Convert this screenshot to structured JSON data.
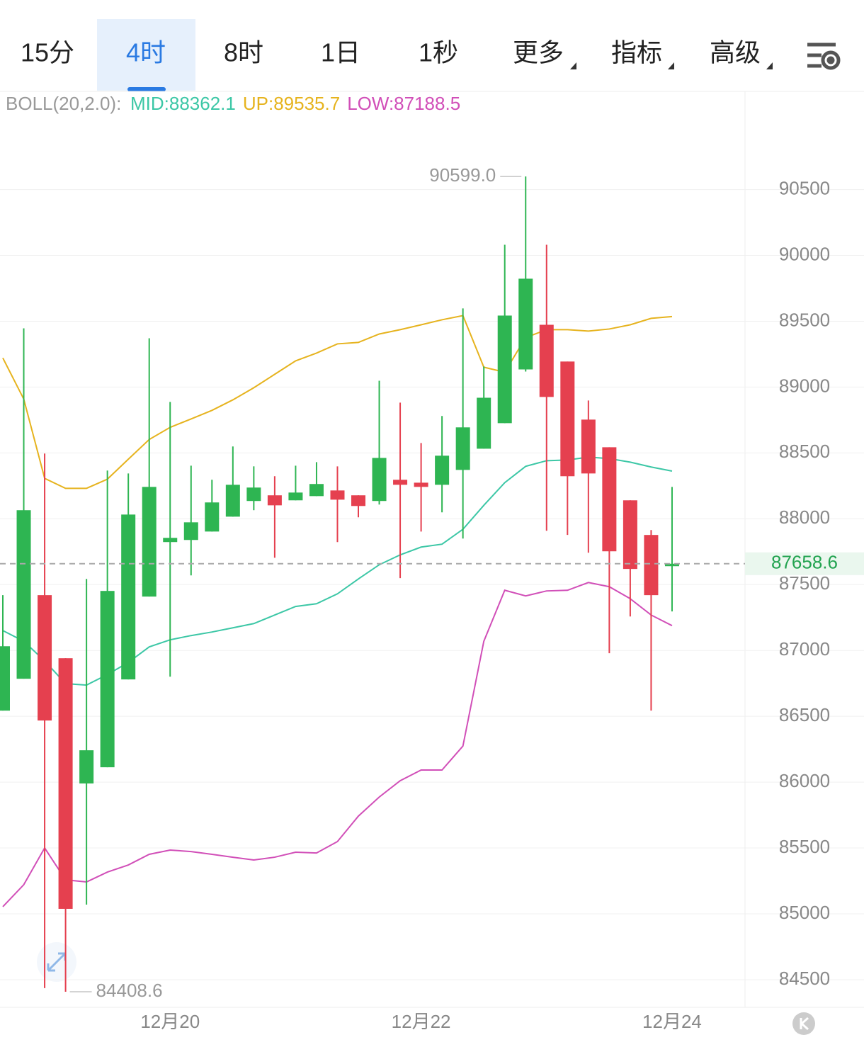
{
  "tabs": [
    "15分",
    "4时",
    "8时",
    "1日",
    "1秒",
    "更多",
    "指标",
    "高级"
  ],
  "active_tab": 1,
  "chart_data": {
    "type": "candlestick",
    "legend": {
      "title": "BOLL(20,2.0):",
      "items": [
        "MID:88362.1",
        "UP:89535.7",
        "LOW:87188.5"
      ]
    },
    "x": [
      null,
      null,
      null,
      null,
      null,
      null,
      null,
      null,
      "12月20",
      null,
      null,
      null,
      null,
      null,
      null,
      null,
      null,
      null,
      null,
      null,
      "12月22",
      null,
      null,
      null,
      null,
      null,
      null,
      null,
      null,
      null,
      null,
      null,
      "12月24"
    ],
    "candles": {
      "up_color": "#2eb552",
      "down_color": "#e5404f",
      "open": [
        86543,
        86785,
        87420,
        86941,
        85990,
        86113,
        86780,
        87409,
        87823,
        87839,
        87903,
        88016,
        88135,
        88178,
        88140,
        88172,
        88215,
        88178,
        88135,
        88296,
        88274,
        88258,
        88371,
        88532,
        88726,
        89134,
        89473,
        89194,
        88753,
        88543,
        88140,
        87877,
        87640
      ],
      "high": [
        87420,
        89446,
        88495,
        86941,
        87543,
        88366,
        88344,
        89371,
        88887,
        88403,
        88296,
        88549,
        88398,
        88323,
        88403,
        88430,
        88398,
        88178,
        89048,
        88882,
        88575,
        88780,
        89597,
        89156,
        90081,
        90599,
        90081,
        89194,
        88898,
        88543,
        88140,
        87914,
        88242
      ],
      "low": [
        86543,
        86785,
        84436,
        84408.6,
        85070,
        86113,
        86780,
        87409,
        86801,
        87570,
        87903,
        88016,
        88065,
        87704,
        88140,
        88172,
        87823,
        88011,
        88108,
        87549,
        87903,
        88049,
        87850,
        88532,
        88726,
        89118,
        87909,
        87877,
        87742,
        86979,
        87258,
        86543,
        87296
      ],
      "close": [
        87032,
        88065,
        86468,
        85038,
        86242,
        87452,
        88032,
        88242,
        87855,
        87973,
        88124,
        88258,
        88237,
        88102,
        88199,
        88264,
        88145,
        88097,
        88462,
        88258,
        88242,
        88479,
        88694,
        88919,
        89543,
        89823,
        88925,
        88323,
        88344,
        87753,
        87619,
        87420,
        87658.6
      ]
    },
    "series": [
      {
        "name": "MID",
        "color": "#3cc7a6",
        "values": [
          87151,
          87070,
          86920,
          86748,
          86737,
          86817,
          86909,
          87027,
          87081,
          87113,
          87140,
          87172,
          87204,
          87269,
          87334,
          87355,
          87430,
          87543,
          87651,
          87726,
          87785,
          87807,
          87920,
          88102,
          88274,
          88398,
          88441,
          88446,
          88468,
          88457,
          88430,
          88393,
          88362.1
        ]
      },
      {
        "name": "UP",
        "color": "#e6b31e",
        "values": [
          89221,
          88909,
          88307,
          88231,
          88231,
          88301,
          88452,
          88602,
          88694,
          88758,
          88823,
          88903,
          88995,
          89097,
          89199,
          89258,
          89328,
          89339,
          89403,
          89436,
          89473,
          89511,
          89543,
          89151,
          89113,
          89376,
          89436,
          89436,
          89425,
          89441,
          89473,
          89522,
          89535.7
        ]
      },
      {
        "name": "LOW",
        "color": "#d14fb8",
        "values": [
          85054,
          85221,
          85500,
          85258,
          85242,
          85317,
          85371,
          85452,
          85484,
          85473,
          85452,
          85430,
          85409,
          85430,
          85468,
          85462,
          85549,
          85742,
          85887,
          86011,
          86092,
          86092,
          86274,
          87070,
          87457,
          87414,
          87452,
          87457,
          87516,
          87484,
          87393,
          87269,
          87188.5
        ]
      }
    ],
    "ylim": [
      84290,
      91240
    ],
    "yticks": [
      84500,
      85000,
      85500,
      86000,
      86500,
      87000,
      87500,
      88000,
      88500,
      89000,
      89500,
      90000,
      90500
    ],
    "grid": true,
    "last_price": 87658.6,
    "max_marker": {
      "value": 90599,
      "label": "90599.0"
    },
    "min_marker": 84408.6
  }
}
